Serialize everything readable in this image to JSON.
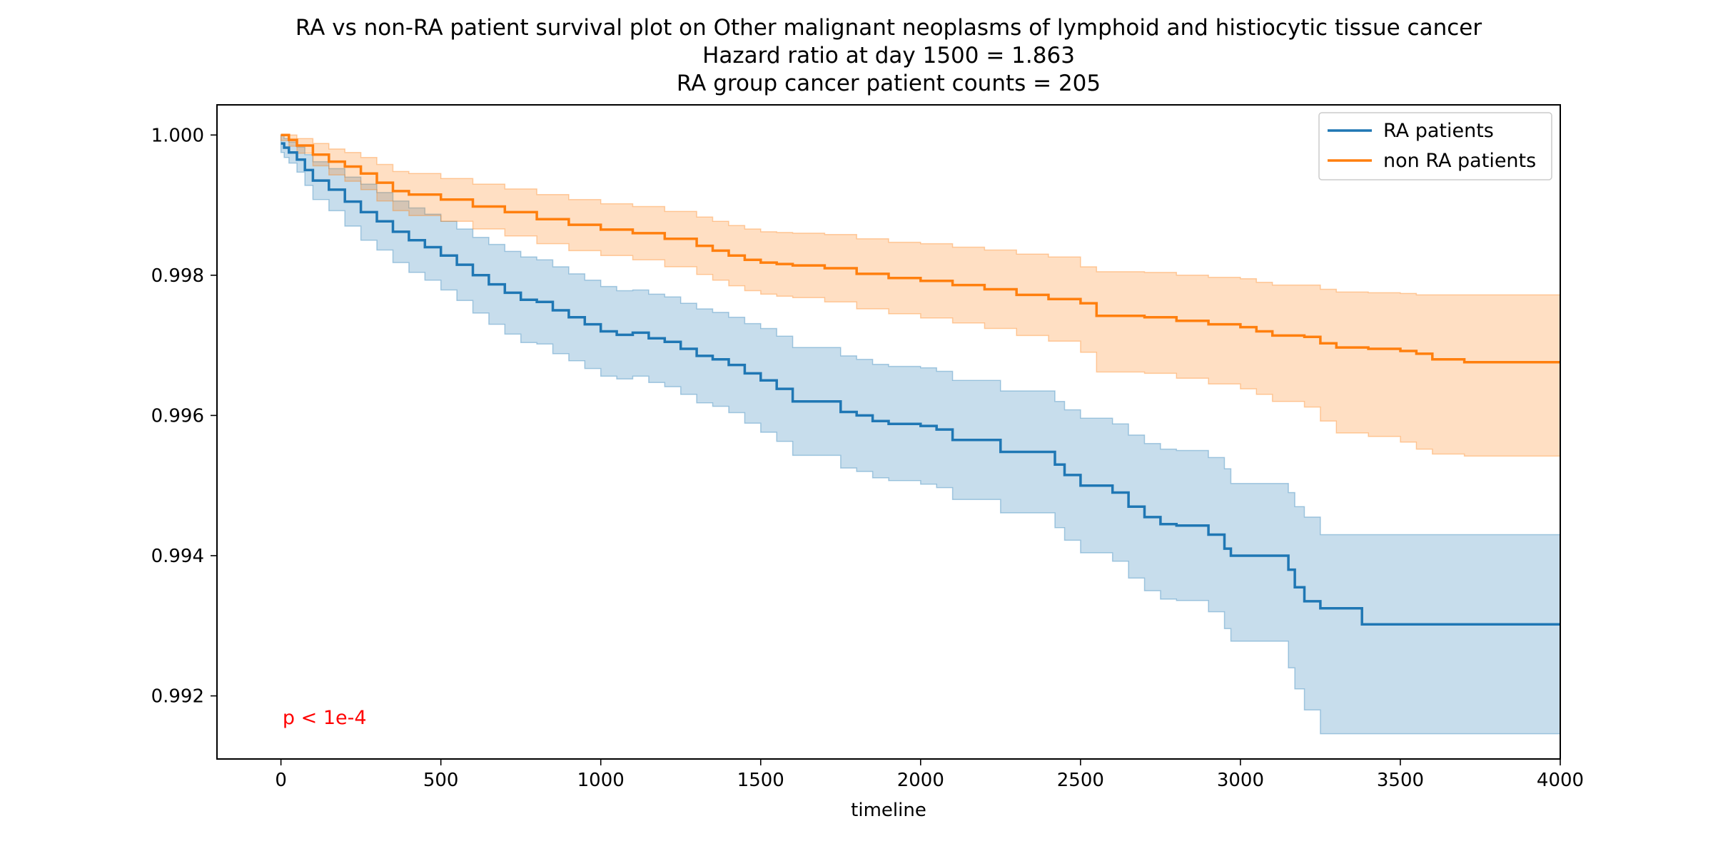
{
  "chart_data": {
    "type": "line",
    "title_lines": [
      "RA vs non-RA patient survival plot on Other malignant neoplasms of lymphoid and histiocytic tissue cancer",
      "Hazard ratio at day 1500 = 1.863",
      "RA group cancer patient counts = 205"
    ],
    "xlabel": "timeline",
    "ylabel": "",
    "xlim": [
      -200,
      4000
    ],
    "ylim": [
      0.9911,
      1.00043
    ],
    "x_ticks": [
      0,
      500,
      1000,
      1500,
      2000,
      2500,
      3000,
      3500,
      4000
    ],
    "x_tick_labels": [
      "0",
      "500",
      "1000",
      "1500",
      "2000",
      "2500",
      "3000",
      "3500",
      "4000"
    ],
    "y_ticks": [
      0.992,
      0.994,
      0.996,
      0.998,
      1.0
    ],
    "y_tick_labels": [
      "0.992",
      "0.994",
      "0.996",
      "0.998",
      "1.000"
    ],
    "grid": false,
    "legend_position": "top-right",
    "annotation": {
      "text": "p < 1e-4",
      "x": 5,
      "y": 0.9916,
      "color": "#ff0000"
    },
    "series": [
      {
        "name": "RA patients",
        "color": "#1f77b4",
        "x": [
          0,
          10,
          25,
          50,
          75,
          100,
          150,
          200,
          250,
          300,
          350,
          400,
          450,
          500,
          550,
          600,
          650,
          700,
          750,
          800,
          850,
          900,
          950,
          1000,
          1050,
          1100,
          1150,
          1200,
          1250,
          1300,
          1350,
          1400,
          1450,
          1500,
          1550,
          1600,
          1700,
          1750,
          1800,
          1850,
          1900,
          2000,
          2050,
          2100,
          2200,
          2250,
          2300,
          2400,
          2420,
          2450,
          2500,
          2550,
          2600,
          2650,
          2700,
          2750,
          2800,
          2900,
          2950,
          2970,
          3000,
          3150,
          3170,
          3200,
          3250,
          3300,
          3380,
          3500,
          4000
        ],
        "y": [
          0.99988,
          0.99982,
          0.99975,
          0.99965,
          0.9995,
          0.99935,
          0.99922,
          0.99905,
          0.9989,
          0.99877,
          0.99862,
          0.9985,
          0.9984,
          0.99828,
          0.99815,
          0.998,
          0.99787,
          0.99775,
          0.99765,
          0.99762,
          0.9975,
          0.9974,
          0.9973,
          0.9972,
          0.99715,
          0.99718,
          0.9971,
          0.99705,
          0.99695,
          0.99685,
          0.9968,
          0.99672,
          0.9966,
          0.9965,
          0.99638,
          0.9962,
          0.9962,
          0.99605,
          0.996,
          0.99592,
          0.99588,
          0.99585,
          0.9958,
          0.99565,
          0.99565,
          0.99548,
          0.99548,
          0.99548,
          0.9953,
          0.99515,
          0.995,
          0.995,
          0.9949,
          0.9947,
          0.99455,
          0.99445,
          0.99443,
          0.9943,
          0.9941,
          0.994,
          0.994,
          0.9938,
          0.99355,
          0.99335,
          0.99325,
          0.99325,
          0.99302,
          0.99302,
          0.99302
        ],
        "ci_upper": [
          1.0,
          0.99995,
          0.9999,
          0.99983,
          0.99972,
          0.99962,
          0.99952,
          0.9994,
          0.9993,
          0.99918,
          0.99906,
          0.99896,
          0.99887,
          0.99877,
          0.99866,
          0.99854,
          0.99844,
          0.99834,
          0.99826,
          0.99822,
          0.99812,
          0.99802,
          0.99793,
          0.99784,
          0.99778,
          0.99779,
          0.99773,
          0.99769,
          0.9976,
          0.99752,
          0.99747,
          0.9974,
          0.99731,
          0.99724,
          0.99713,
          0.99697,
          0.99697,
          0.99685,
          0.9968,
          0.99673,
          0.9967,
          0.99668,
          0.99663,
          0.9965,
          0.9965,
          0.99635,
          0.99635,
          0.99635,
          0.9962,
          0.99608,
          0.99596,
          0.99596,
          0.99588,
          0.99572,
          0.9956,
          0.99552,
          0.9955,
          0.9954,
          0.99524,
          0.99503,
          0.99503,
          0.9949,
          0.9947,
          0.99455,
          0.9943,
          0.9943,
          0.9943,
          0.9943,
          0.9943
        ],
        "ci_lower": [
          0.99975,
          0.99968,
          0.9996,
          0.99947,
          0.99928,
          0.99908,
          0.99892,
          0.9987,
          0.9985,
          0.99836,
          0.99818,
          0.99804,
          0.99793,
          0.99779,
          0.99764,
          0.99746,
          0.9973,
          0.99716,
          0.99704,
          0.99702,
          0.99688,
          0.99678,
          0.99667,
          0.99656,
          0.99652,
          0.99656,
          0.99647,
          0.99641,
          0.9963,
          0.99618,
          0.99613,
          0.99604,
          0.99589,
          0.99576,
          0.99563,
          0.99543,
          0.99543,
          0.99525,
          0.9952,
          0.99511,
          0.99507,
          0.99502,
          0.99497,
          0.9948,
          0.9948,
          0.99461,
          0.99461,
          0.99461,
          0.9944,
          0.99422,
          0.99404,
          0.99404,
          0.99392,
          0.99368,
          0.9935,
          0.99338,
          0.99336,
          0.9932,
          0.99296,
          0.99278,
          0.99278,
          0.9924,
          0.9921,
          0.9918,
          0.99146,
          0.99146,
          0.99146,
          0.99146,
          0.99146
        ]
      },
      {
        "name": "non RA patients",
        "color": "#ff7f0e",
        "x": [
          0,
          25,
          50,
          100,
          150,
          200,
          250,
          300,
          350,
          400,
          500,
          600,
          700,
          800,
          900,
          1000,
          1100,
          1200,
          1300,
          1350,
          1400,
          1450,
          1500,
          1550,
          1600,
          1700,
          1800,
          1900,
          2000,
          2100,
          2200,
          2300,
          2400,
          2500,
          2550,
          2700,
          2800,
          2900,
          3000,
          3050,
          3100,
          3200,
          3250,
          3300,
          3400,
          3500,
          3550,
          3600,
          3700,
          4000
        ],
        "y": [
          1.0,
          0.99993,
          0.99985,
          0.99972,
          0.99962,
          0.99955,
          0.99945,
          0.99932,
          0.9992,
          0.99915,
          0.99908,
          0.99898,
          0.9989,
          0.9988,
          0.99872,
          0.99865,
          0.9986,
          0.99852,
          0.99842,
          0.99835,
          0.99828,
          0.99822,
          0.99818,
          0.99816,
          0.99814,
          0.9981,
          0.99802,
          0.99796,
          0.99792,
          0.99786,
          0.9978,
          0.99772,
          0.99766,
          0.9976,
          0.99742,
          0.9974,
          0.99735,
          0.9973,
          0.99726,
          0.9972,
          0.99714,
          0.99712,
          0.99703,
          0.99697,
          0.99695,
          0.99692,
          0.99688,
          0.9968,
          0.99676,
          0.99676
        ],
        "ci_upper": [
          1.0,
          1.0,
          0.99995,
          0.99988,
          0.9998,
          0.99975,
          0.99968,
          0.99958,
          0.99948,
          0.99945,
          0.99938,
          0.9993,
          0.99923,
          0.99915,
          0.99908,
          0.99902,
          0.99898,
          0.99891,
          0.99883,
          0.99877,
          0.99871,
          0.99866,
          0.99862,
          0.99861,
          0.9986,
          0.99858,
          0.99852,
          0.99847,
          0.99845,
          0.9984,
          0.99836,
          0.9983,
          0.99826,
          0.99812,
          0.99805,
          0.99804,
          0.998,
          0.99797,
          0.99795,
          0.9979,
          0.99786,
          0.99786,
          0.9978,
          0.99776,
          0.99775,
          0.99774,
          0.99772,
          0.99772,
          0.99772,
          0.99772
        ],
        "ci_lower": [
          0.99992,
          0.99984,
          0.99974,
          0.99956,
          0.99943,
          0.99934,
          0.99922,
          0.99906,
          0.99892,
          0.99885,
          0.99877,
          0.99866,
          0.99856,
          0.99845,
          0.99835,
          0.99828,
          0.99822,
          0.99812,
          0.99801,
          0.99793,
          0.99785,
          0.99778,
          0.99773,
          0.9977,
          0.99768,
          0.99762,
          0.99752,
          0.99745,
          0.99739,
          0.99732,
          0.99724,
          0.99714,
          0.99706,
          0.9969,
          0.99662,
          0.9966,
          0.99653,
          0.99645,
          0.99638,
          0.9963,
          0.9962,
          0.99612,
          0.99592,
          0.99575,
          0.9957,
          0.99562,
          0.99552,
          0.99545,
          0.99542,
          0.99542
        ]
      }
    ]
  }
}
